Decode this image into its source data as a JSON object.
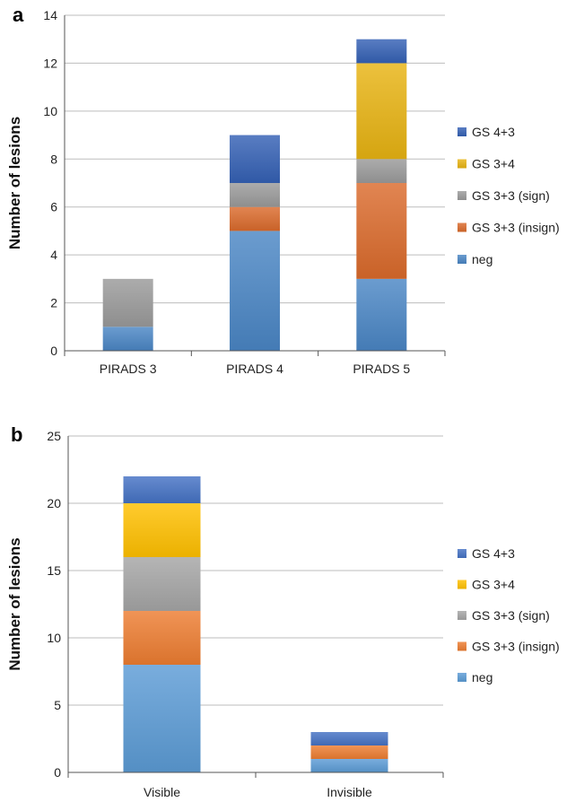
{
  "chart_data": [
    {
      "panel": "a",
      "type": "bar",
      "stacked": true,
      "ylabel": "Number of lesions",
      "ylim": [
        0,
        14
      ],
      "ytick_step": 2,
      "grid": true,
      "legend_position": "right",
      "categories": [
        "PIRADS 3",
        "PIRADS 4",
        "PIRADS 5"
      ],
      "series": [
        {
          "name": "neg",
          "color": "#4a86c5",
          "values": [
            1,
            5,
            3
          ]
        },
        {
          "name": "GS 3+3 (insign)",
          "color": "#db6a2c",
          "values": [
            0,
            1,
            4
          ]
        },
        {
          "name": "GS 3+3 (sign)",
          "color": "#9a9a9a",
          "values": [
            2,
            1,
            1
          ]
        },
        {
          "name": "GS 3+4",
          "color": "#e8b312",
          "values": [
            0,
            0,
            4
          ]
        },
        {
          "name": "GS 4+3",
          "color": "#3461b4",
          "values": [
            0,
            2,
            1
          ]
        }
      ]
    },
    {
      "panel": "b",
      "type": "bar",
      "stacked": true,
      "ylabel": "Number of lesions",
      "ylim": [
        0,
        25
      ],
      "ytick_step": 5,
      "grid": true,
      "legend_position": "right",
      "categories": [
        "Visible",
        "Invisible"
      ],
      "series": [
        {
          "name": "neg",
          "color": "#5b9bd5",
          "values": [
            8,
            1
          ]
        },
        {
          "name": "GS 3+3 (insign)",
          "color": "#ed7d31",
          "values": [
            4,
            1
          ]
        },
        {
          "name": "GS 3+3 (sign)",
          "color": "#a5a5a5",
          "values": [
            4,
            0
          ]
        },
        {
          "name": "GS 3+4",
          "color": "#ffc000",
          "values": [
            4,
            0
          ]
        },
        {
          "name": "GS 4+3",
          "color": "#4472c4",
          "values": [
            2,
            1
          ]
        }
      ]
    }
  ]
}
